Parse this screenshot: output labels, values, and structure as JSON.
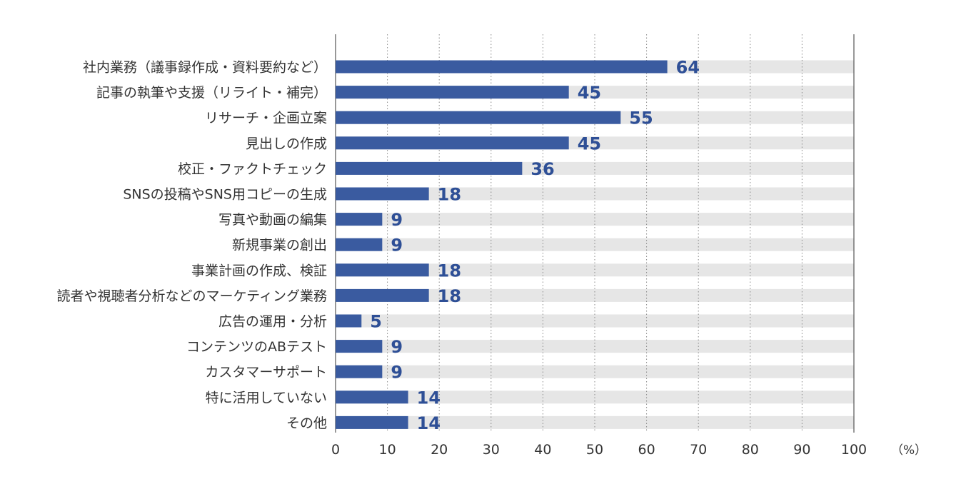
{
  "chart_data": {
    "type": "bar",
    "orientation": "horizontal",
    "categories": [
      "社内業務（議事録作成・資料要約など）",
      "記事の執筆や支援（リライト・補完）",
      "リサーチ・企画立案",
      "見出しの作成",
      "校正・ファクトチェック",
      "SNSの投稿やSNS用コピーの生成",
      "写真や動画の編集",
      "新規事業の創出",
      "事業計画の作成、検証",
      "読者や視聴者分析などのマーケティング業務",
      "広告の運用・分析",
      "コンテンツのABテスト",
      "カスタマーサポート",
      "特に活用していない",
      "その他"
    ],
    "values": [
      64,
      45,
      55,
      45,
      36,
      18,
      9,
      9,
      18,
      18,
      5,
      9,
      9,
      14,
      14
    ],
    "value_labels": [
      "64",
      "45",
      "55",
      "45",
      "36",
      "18",
      "9",
      "9",
      "18",
      "18",
      "5",
      "9",
      "9",
      "14",
      "14"
    ],
    "xlim": [
      0,
      100
    ],
    "xticks": [
      0,
      10,
      20,
      30,
      40,
      50,
      60,
      70,
      80,
      90,
      100
    ],
    "xtick_labels": [
      "0",
      "10",
      "20",
      "30",
      "40",
      "50",
      "60",
      "70",
      "80",
      "90",
      "100"
    ],
    "unit_label": "（%）",
    "grid": "vertical dotted",
    "bar_color": "#3a5ba0",
    "track_color": "#e6e6e6",
    "value_label_color": "#2e4f96"
  }
}
